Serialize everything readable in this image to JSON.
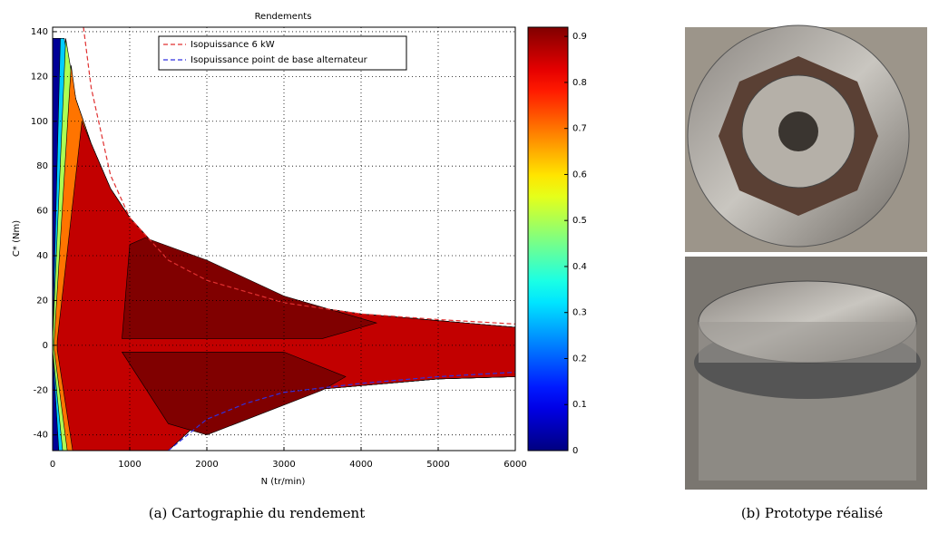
{
  "chart_data": {
    "type": "contour",
    "title": "Rendements",
    "x_label": "N (tr/min)",
    "y_label": "C* (Nm)",
    "xlim": [
      0,
      6000
    ],
    "ylim": [
      -47,
      142
    ],
    "xticks": [
      0,
      1000,
      2000,
      3000,
      4000,
      5000,
      6000
    ],
    "yticks": [
      -40,
      -20,
      0,
      20,
      40,
      60,
      80,
      100,
      120,
      140
    ],
    "grid": true,
    "colormap": "jet",
    "clim": [
      0,
      0.92
    ],
    "cticks": [
      0,
      0.1,
      0.2,
      0.3,
      0.4,
      0.5,
      0.6,
      0.7,
      0.8,
      0.9
    ],
    "contours": [
      {
        "level": 0.02,
        "x": [
          0,
          150,
          300,
          500,
          750,
          1000,
          1500,
          2000,
          3000,
          4000,
          5000,
          6000,
          6000,
          5000,
          4000,
          3000,
          2000,
          1500,
          0
        ],
        "y": [
          137,
          137,
          110,
          90,
          70,
          57,
          38,
          28,
          19,
          14,
          11,
          8,
          -14,
          -15,
          -18,
          -21,
          -31,
          -47,
          -47
        ]
      },
      {
        "level": 0.3,
        "x": [
          0,
          100,
          150,
          300,
          500,
          750,
          1000,
          1500,
          2000,
          3000,
          4000,
          5000,
          6000,
          6000,
          5000,
          4000,
          3000,
          2000,
          1500,
          80,
          0
        ],
        "y": [
          2,
          137,
          137,
          110,
          90,
          70,
          57,
          38,
          28,
          19,
          14,
          11,
          8,
          -14,
          -15,
          -18,
          -21,
          -31,
          -47,
          -47,
          -2
        ]
      },
      {
        "level": 0.5,
        "x": [
          0,
          170,
          300,
          500,
          750,
          1000,
          1500,
          2000,
          3000,
          4000,
          5000,
          6000,
          6000,
          5000,
          4000,
          3000,
          2000,
          1500,
          130,
          0
        ],
        "y": [
          2,
          137,
          110,
          90,
          70,
          57,
          38,
          28,
          19,
          14,
          11,
          8,
          -14,
          -15,
          -18,
          -21,
          -31,
          -47,
          -47,
          -2
        ]
      },
      {
        "level": 0.7,
        "x": [
          20,
          240,
          300,
          500,
          750,
          1000,
          1500,
          2000,
          3000,
          4000,
          5000,
          6000,
          6000,
          5000,
          4000,
          3000,
          2000,
          1500,
          190,
          20
        ],
        "y": [
          2,
          125,
          110,
          90,
          70,
          57,
          38,
          28,
          19,
          14,
          11,
          8,
          -14,
          -15,
          -18,
          -21,
          -31,
          -47,
          -47,
          -2
        ]
      },
      {
        "level": 0.86,
        "x": [
          60,
          380,
          500,
          750,
          1000,
          1500,
          2000,
          3000,
          4000,
          5000,
          6000,
          6000,
          5000,
          4000,
          3000,
          2000,
          1500,
          260,
          60
        ],
        "y": [
          2,
          100,
          90,
          70,
          57,
          38,
          28,
          19,
          14,
          11,
          8,
          -14,
          -15,
          -18,
          -21,
          -31,
          -47,
          -47,
          -2
        ]
      },
      {
        "level": 0.92,
        "x": [
          900,
          1000,
          1200,
          2000,
          3000,
          3800,
          4200,
          3500
        ],
        "y": [
          3,
          45,
          48,
          38,
          22,
          14,
          10,
          3
        ]
      },
      {
        "level": 0.92,
        "x": [
          900,
          1500,
          2000,
          3500,
          3800,
          3000
        ],
        "y": [
          -3,
          -35,
          -40,
          -20,
          -14,
          -3
        ]
      }
    ],
    "series": [
      {
        "name": "Isopuissance 6 kW",
        "color": "#e03030",
        "x": [
          400,
          500,
          750,
          1000,
          1500,
          2000,
          3000,
          4000,
          5000,
          6000
        ],
        "values": [
          142,
          115,
          76,
          57,
          38,
          29,
          19,
          14,
          11.5,
          9.5
        ]
      },
      {
        "name": "Isopuissance point de base alternateur",
        "color": "#3030e0",
        "x": [
          1500,
          2000,
          2500,
          3000,
          4000,
          5000,
          6000
        ],
        "values": [
          -47,
          -33,
          -26,
          -21,
          -17,
          -14,
          -12
        ]
      }
    ]
  },
  "captions": [
    "(a) Cartographie du rendement",
    "(b) Prototype réalisé"
  ]
}
